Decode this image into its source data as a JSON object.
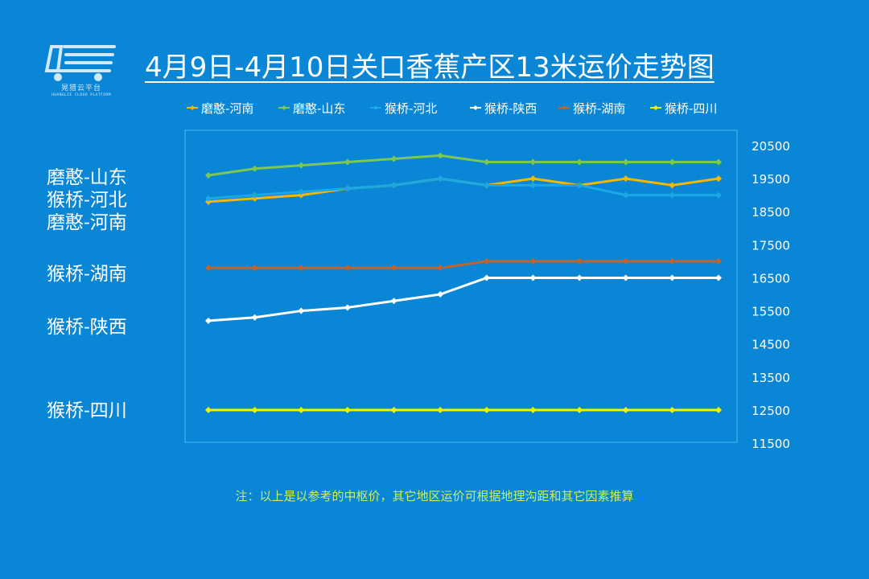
{
  "title": "4月9日-4月10日关口香蕉产区13米运价走势图",
  "logo": {
    "text": "晃猎云平台",
    "sub": "HUANGLIE CLOUD PLATFORM"
  },
  "note": "注：以上是以参考的中枢价，其它地区运价可根据地理沟距和其它因素推算",
  "side_labels": [
    "磨憨-山东",
    "猴桥-河北",
    "磨憨-河南",
    "猴桥-湖南",
    "猴桥-陕西",
    "猴桥-四川"
  ],
  "chart_data": {
    "type": "line",
    "title": "4月9日-4月10日关口香蕉产区13米运价走势图",
    "xlabel": "",
    "ylabel": "",
    "ylim": [
      11500,
      20500
    ],
    "yticks": [
      20500,
      19500,
      18500,
      17500,
      16500,
      15500,
      14500,
      13500,
      12500,
      11500
    ],
    "y_axis_position": "right",
    "legend_position": "top",
    "grid": false,
    "x": [
      1,
      2,
      3,
      4,
      5,
      6,
      7,
      8,
      9,
      10,
      11,
      12
    ],
    "series": [
      {
        "name": "磨憨-河南",
        "color": "#f5b800",
        "values": [
          18800,
          18900,
          19000,
          19200,
          19300,
          19500,
          19300,
          19500,
          19300,
          19500,
          19300,
          19500
        ]
      },
      {
        "name": "磨憨-山东",
        "color": "#7cc850",
        "values": [
          19600,
          19800,
          19900,
          20000,
          20100,
          20200,
          20000,
          20000,
          20000,
          20000,
          20000,
          20000
        ]
      },
      {
        "name": "猴桥-河北",
        "color": "#1ba9e6",
        "values": [
          18900,
          19000,
          19100,
          19200,
          19300,
          19500,
          19300,
          19300,
          19300,
          19000,
          19000,
          19000
        ]
      },
      {
        "name": "猴桥-陕西",
        "color": "#ffffff",
        "values": [
          15200,
          15300,
          15500,
          15600,
          15800,
          16000,
          16500,
          16500,
          16500,
          16500,
          16500,
          16500
        ]
      },
      {
        "name": "猴桥-湖南",
        "color": "#c0642c",
        "values": [
          16800,
          16800,
          16800,
          16800,
          16800,
          16800,
          17000,
          17000,
          17000,
          17000,
          17000,
          17000
        ]
      },
      {
        "name": "猴桥-四川",
        "color": "#f3f500",
        "values": [
          12500,
          12500,
          12500,
          12500,
          12500,
          12500,
          12500,
          12500,
          12500,
          12500,
          12500,
          12500
        ]
      }
    ]
  }
}
